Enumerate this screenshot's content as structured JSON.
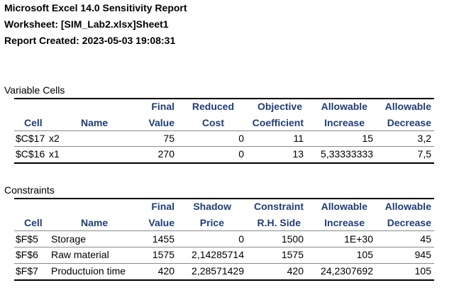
{
  "report": {
    "title": "Microsoft Excel 14.0 Sensitivity Report",
    "worksheet": "Worksheet: [SIM_Lab2.xlsx]Sheet1",
    "created": "Report Created: 2023-05-03 19:08:31"
  },
  "variable_cells": {
    "section_label": "Variable Cells",
    "headers": {
      "cell": "Cell",
      "name": "Name",
      "final_1": "Final",
      "final_2": "Value",
      "reduced_1": "Reduced",
      "reduced_2": "Cost",
      "objective_1": "Objective",
      "objective_2": "Coefficient",
      "inc_1": "Allowable",
      "inc_2": "Increase",
      "dec_1": "Allowable",
      "dec_2": "Decrease"
    },
    "rows": [
      {
        "cell": "$C$17",
        "name": "x2",
        "final": "75",
        "reduced": "0",
        "objective": "11",
        "increase": "15",
        "decrease": "3,2"
      },
      {
        "cell": "$C$16",
        "name": "x1",
        "final": "270",
        "reduced": "0",
        "objective": "13",
        "increase": "5,33333333",
        "decrease": "7,5"
      }
    ]
  },
  "constraints": {
    "section_label": "Constraints",
    "headers": {
      "cell": "Cell",
      "name": "Name",
      "final_1": "Final",
      "final_2": "Value",
      "shadow_1": "Shadow",
      "shadow_2": "Price",
      "rhs_1": "Constraint",
      "rhs_2": "R.H. Side",
      "inc_1": "Allowable",
      "inc_2": "Increase",
      "dec_1": "Allowable",
      "dec_2": "Decrease"
    },
    "rows": [
      {
        "cell": "$F$5",
        "name": "Storage",
        "final": "1455",
        "shadow": "0",
        "rhs": "1500",
        "increase": "1E+30",
        "decrease": "45"
      },
      {
        "cell": "$F$6",
        "name": "Raw material",
        "final": "1575",
        "shadow": "2,14285714",
        "rhs": "1575",
        "increase": "105",
        "decrease": "945"
      },
      {
        "cell": "$F$7",
        "name": "Productuion time",
        "final": "420",
        "shadow": "2,28571429",
        "rhs": "420",
        "increase": "24,2307692",
        "decrease": "105"
      }
    ]
  }
}
